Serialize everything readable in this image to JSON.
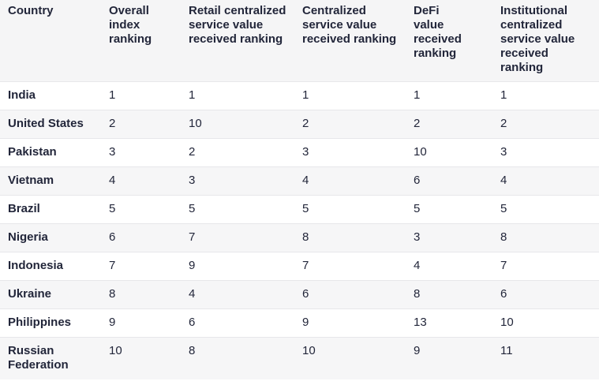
{
  "table": {
    "header": [
      "Country",
      "Overall index ranking",
      "Retail centralized service value received ranking",
      "Centralized service value received ranking",
      "DeFi value received ranking",
      "Institutional centralized service value received ranking"
    ],
    "rows": [
      [
        "India",
        1,
        1,
        1,
        1,
        1
      ],
      [
        "United States",
        2,
        10,
        2,
        2,
        2
      ],
      [
        "Pakistan",
        3,
        2,
        3,
        10,
        3
      ],
      [
        "Vietnam",
        4,
        3,
        4,
        6,
        4
      ],
      [
        "Brazil",
        5,
        5,
        5,
        5,
        5
      ],
      [
        "Nigeria",
        6,
        7,
        8,
        3,
        8
      ],
      [
        "Indonesia",
        7,
        9,
        7,
        4,
        7
      ],
      [
        "Ukraine",
        8,
        4,
        6,
        8,
        6
      ],
      [
        "Philippines",
        9,
        6,
        9,
        13,
        10
      ],
      [
        "Russian Federation",
        10,
        8,
        10,
        9,
        11
      ]
    ]
  }
}
